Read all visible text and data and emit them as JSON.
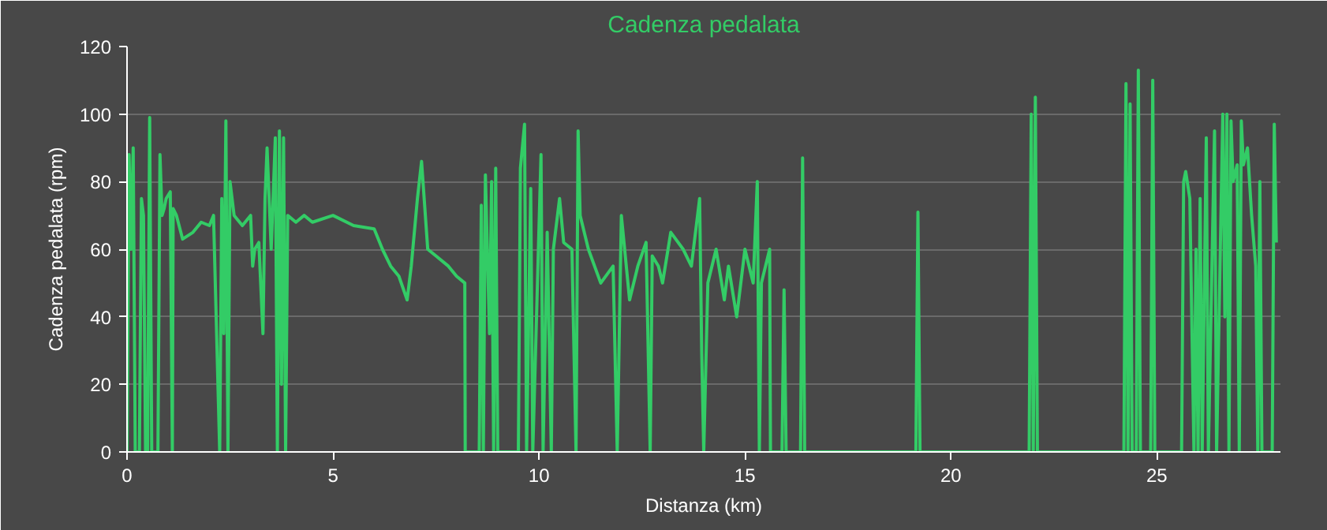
{
  "chart_data": {
    "type": "line",
    "title": "Cadenza pedalata",
    "xlabel": "Distanza (km)",
    "ylabel": "Cadenza pedalata (rpm)",
    "x": [
      0,
      0.05,
      0.1,
      0.15,
      0.2,
      0.3,
      0.35,
      0.4,
      0.45,
      0.5,
      0.55,
      0.6,
      0.75,
      0.8,
      0.85,
      0.9,
      0.95,
      1.05,
      1.1,
      1.12,
      1.2,
      1.35,
      1.6,
      1.8,
      2.0,
      2.1,
      2.25,
      2.3,
      2.35,
      2.4,
      2.45,
      2.5,
      2.6,
      2.8,
      3.0,
      3.05,
      3.1,
      3.2,
      3.3,
      3.35,
      3.4,
      3.5,
      3.6,
      3.65,
      3.7,
      3.75,
      3.8,
      3.85,
      3.9,
      4.1,
      4.3,
      4.5,
      5.0,
      5.5,
      6.0,
      6.2,
      6.4,
      6.6,
      6.8,
      6.9,
      7.05,
      7.15,
      7.3,
      7.5,
      7.8,
      8.0,
      8.2,
      8.21,
      8.55,
      8.6,
      8.65,
      8.7,
      8.8,
      8.85,
      8.9,
      8.95,
      9.0,
      9.5,
      9.55,
      9.65,
      9.7,
      9.8,
      9.85,
      10.05,
      10.1,
      10.2,
      10.3,
      10.35,
      10.5,
      10.6,
      10.8,
      10.9,
      10.95,
      11.0,
      11.2,
      11.5,
      11.8,
      11.9,
      12.0,
      12.2,
      12.4,
      12.6,
      12.7,
      12.75,
      12.9,
      13.0,
      13.2,
      13.5,
      13.7,
      13.9,
      13.95,
      14.0,
      14.1,
      14.3,
      14.5,
      14.6,
      14.8,
      15.0,
      15.2,
      15.3,
      15.35,
      15.4,
      15.5,
      15.6,
      15.62,
      15.9,
      15.95,
      16.0,
      16.35,
      16.4,
      16.45,
      19.15,
      19.2,
      19.25,
      21.9,
      21.95,
      22.0,
      22.05,
      22.1,
      24.2,
      24.25,
      24.3,
      24.35,
      24.4,
      24.5,
      24.55,
      24.6,
      24.85,
      24.9,
      24.95,
      25.6,
      25.65,
      25.7,
      25.8,
      25.9,
      25.95,
      26.0,
      26.05,
      26.1,
      26.2,
      26.25,
      26.4,
      26.45,
      26.6,
      26.65,
      26.7,
      26.75,
      26.8,
      26.85,
      26.95,
      27.0,
      27.05,
      27.1,
      27.2,
      27.3,
      27.4,
      27.45,
      27.5,
      27.55,
      27.8,
      27.85,
      27.9
    ],
    "series": [
      {
        "color": "#33cc66",
        "values": [
          0,
          88,
          60,
          90,
          0,
          0,
          75,
          70,
          0,
          0,
          99,
          0,
          0,
          88,
          70,
          72,
          75,
          77,
          0,
          72,
          70,
          63,
          65,
          68,
          67,
          70,
          0,
          75,
          35,
          98,
          0,
          80,
          70,
          67,
          70,
          55,
          60,
          62,
          35,
          75,
          90,
          60,
          93,
          0,
          95,
          20,
          93,
          0,
          70,
          68,
          70,
          68,
          70,
          67,
          66,
          60,
          55,
          52,
          45,
          55,
          75,
          86,
          60,
          58,
          55,
          52,
          50,
          0,
          0,
          73,
          0,
          82,
          35,
          80,
          0,
          84,
          0,
          0,
          84,
          97,
          0,
          78,
          0,
          88,
          0,
          65,
          0,
          60,
          75,
          62,
          60,
          0,
          95,
          70,
          60,
          50,
          55,
          0,
          70,
          45,
          55,
          62,
          0,
          58,
          55,
          50,
          65,
          60,
          55,
          75,
          30,
          0,
          50,
          60,
          45,
          55,
          40,
          60,
          50,
          80,
          0,
          50,
          55,
          60,
          0,
          0,
          48,
          0,
          0,
          87,
          0,
          0,
          71,
          0,
          0,
          100,
          0,
          105,
          0,
          0,
          109,
          0,
          103,
          0,
          0,
          113,
          0,
          0,
          110,
          0,
          0,
          80,
          83,
          75,
          0,
          60,
          0,
          75,
          0,
          93,
          0,
          95,
          0,
          100,
          40,
          100,
          0,
          98,
          80,
          85,
          0,
          98,
          85,
          90,
          70,
          55,
          0,
          80,
          0,
          0,
          97,
          62
        ]
      }
    ],
    "xlim": [
      0,
      28
    ],
    "ylim": [
      0,
      120
    ],
    "xticks": [
      0,
      5,
      10,
      15,
      20,
      25
    ],
    "yticks": [
      0,
      20,
      40,
      60,
      80,
      100,
      120
    ],
    "grid": "y"
  }
}
